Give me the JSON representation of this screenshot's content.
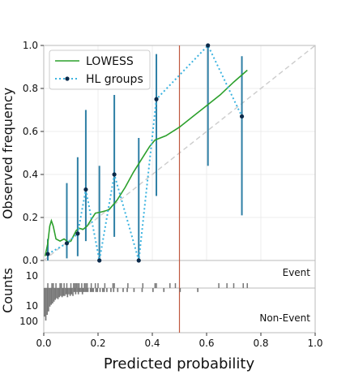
{
  "chart_data": {
    "type": "line",
    "xlabel": "Predicted probability",
    "ylabel_main": "Observed frequency",
    "ylabel_counts": "Counts",
    "xlim": [
      0,
      1
    ],
    "ylim": [
      0,
      1
    ],
    "x_ticks": [
      "0.0",
      "0.2",
      "0.4",
      "0.6",
      "0.8",
      "1.0"
    ],
    "y_ticks": [
      "0.0",
      "0.2",
      "0.4",
      "0.6",
      "0.8",
      "1.0"
    ],
    "count_ticks_event": [
      "10"
    ],
    "count_ticks_nonevent": [
      "10",
      "100"
    ],
    "event_label": "Event",
    "nonevent_label": "Non-Event",
    "threshold": 0.5,
    "grid": true,
    "legend_position": "top-left",
    "colors": {
      "lowess": "#2ca02c",
      "hl_line": "#3bb3e0",
      "hl_marker": "#0b2a4a",
      "error_bars": "#2e7fa5",
      "threshold": "#c0583f",
      "diagonal": "#cccccc",
      "histogram": "#777777"
    },
    "series": [
      {
        "name": "LOWESS",
        "x": [
          0.005,
          0.015,
          0.022,
          0.028,
          0.035,
          0.045,
          0.06,
          0.075,
          0.09,
          0.1,
          0.11,
          0.12,
          0.13,
          0.145,
          0.16,
          0.175,
          0.19,
          0.21,
          0.24,
          0.27,
          0.3,
          0.33,
          0.36,
          0.39,
          0.41,
          0.45,
          0.5,
          0.55,
          0.6,
          0.65,
          0.7,
          0.75
        ],
        "values": [
          0.02,
          0.08,
          0.16,
          0.185,
          0.16,
          0.1,
          0.09,
          0.1,
          0.085,
          0.09,
          0.115,
          0.14,
          0.15,
          0.145,
          0.16,
          0.19,
          0.22,
          0.225,
          0.235,
          0.28,
          0.34,
          0.41,
          0.47,
          0.53,
          0.56,
          0.58,
          0.62,
          0.67,
          0.72,
          0.77,
          0.83,
          0.885
        ]
      },
      {
        "name": "HL groups",
        "x": [
          0.015,
          0.085,
          0.125,
          0.155,
          0.205,
          0.26,
          0.35,
          0.415,
          0.605,
          0.73
        ],
        "values": [
          0.03,
          0.08,
          0.125,
          0.33,
          0.0,
          0.4,
          0.0,
          0.75,
          1.0,
          0.67
        ],
        "ci_low": [
          0.0,
          0.01,
          0.02,
          0.09,
          0.0,
          0.11,
          0.0,
          0.3,
          0.44,
          0.21
        ],
        "ci_high": [
          0.1,
          0.36,
          0.48,
          0.7,
          0.44,
          0.77,
          0.57,
          0.96,
          1.0,
          0.95
        ]
      }
    ],
    "event_rug": [
      0.015,
      0.03,
      0.035,
      0.045,
      0.06,
      0.065,
      0.075,
      0.085,
      0.1,
      0.11,
      0.115,
      0.12,
      0.125,
      0.13,
      0.14,
      0.15,
      0.155,
      0.16,
      0.175,
      0.19,
      0.2,
      0.225,
      0.255,
      0.26,
      0.31,
      0.365,
      0.41,
      0.415,
      0.465,
      0.485,
      0.645,
      0.675,
      0.7,
      0.735,
      0.75
    ],
    "nonevent_hist": {
      "bin_width": 0.005,
      "start": 0.0,
      "counts": [
        150,
        300,
        110,
        60,
        25,
        18,
        14,
        10,
        7,
        5,
        6,
        4,
        3,
        4,
        3,
        3,
        2,
        4,
        2,
        3,
        2,
        3,
        1,
        2,
        1,
        2,
        1,
        1,
        2,
        1,
        1,
        1,
        1,
        0,
        1,
        1,
        1,
        0,
        1,
        1,
        0,
        1,
        0,
        1,
        1,
        0,
        1,
        0,
        0,
        1,
        0,
        1,
        0,
        0,
        1,
        0,
        0,
        0,
        1,
        0,
        0,
        1,
        0,
        0,
        0,
        0,
        1,
        0,
        0,
        0,
        0,
        0,
        1,
        0,
        0,
        0,
        0,
        0,
        0,
        0,
        1,
        0,
        0,
        0,
        0,
        0,
        0,
        0,
        1,
        0,
        0,
        0,
        0,
        0,
        0,
        0,
        0,
        0,
        0,
        0,
        1,
        0,
        0,
        0,
        0,
        0,
        0,
        0,
        0,
        0,
        0,
        0,
        0,
        1,
        0,
        0,
        0,
        0,
        0,
        0,
        0,
        0,
        0,
        0,
        0,
        0,
        0,
        0,
        0,
        0,
        0,
        0,
        0,
        0,
        0,
        0,
        0,
        0,
        0,
        0,
        0,
        0,
        0,
        0,
        0,
        0,
        0,
        0,
        0,
        0,
        0,
        0,
        0,
        0,
        0,
        0,
        0,
        0,
        0,
        0,
        0,
        0,
        0,
        0,
        0,
        0,
        0,
        0,
        0,
        0,
        0,
        0,
        0,
        0,
        0,
        0,
        0,
        0,
        0,
        0,
        0,
        0,
        0,
        0,
        0,
        0,
        0,
        0,
        0,
        0,
        0,
        0,
        0,
        0,
        0,
        0,
        0,
        0,
        0,
        0,
        0,
        0,
        0,
        0,
        0,
        0,
        0,
        0,
        0,
        0,
        0,
        0,
        0,
        0,
        0,
        0,
        0,
        0,
        0,
        0,
        0,
        0,
        0,
        0,
        0,
        0,
        0,
        0,
        0,
        0,
        0,
        0,
        0,
        0,
        0,
        0,
        0,
        0,
        0,
        0,
        0,
        0,
        0,
        0,
        0,
        0,
        0,
        0,
        0,
        0,
        0,
        0,
        0,
        0,
        0,
        0,
        0,
        0,
        0,
        0,
        0,
        0,
        0,
        0,
        0,
        0,
        0,
        0,
        0,
        0,
        0,
        0,
        0,
        0,
        0,
        0,
        0,
        0,
        0,
        0,
        0,
        0,
        0,
        0,
        0,
        0,
        0,
        0,
        0,
        0,
        0,
        0,
        0,
        0,
        0,
        0,
        0,
        0,
        0,
        0,
        0,
        0,
        0,
        0,
        0,
        0,
        0,
        0,
        0,
        0,
        0,
        0,
        0,
        0,
        0,
        0,
        0,
        0,
        0,
        0,
        0,
        0,
        0,
        0,
        0
      ]
    }
  }
}
